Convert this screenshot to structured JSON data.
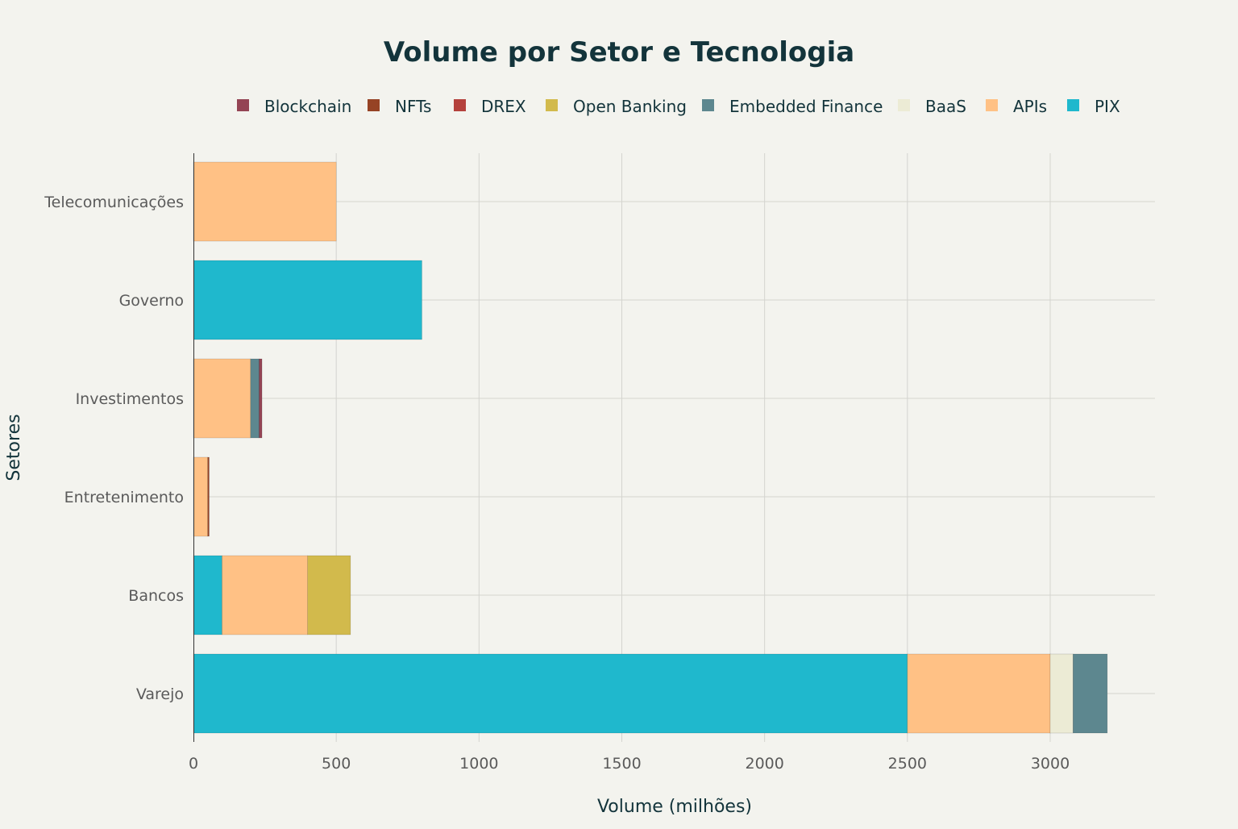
{
  "chart_data": {
    "type": "bar",
    "orientation": "horizontal",
    "stacked": true,
    "title": "Volume por Setor e Tecnologia",
    "xlabel": "Volume (milhões)",
    "ylabel": "Setores",
    "xlim": [
      0,
      3370
    ],
    "xticks": [
      0,
      500,
      1000,
      1500,
      2000,
      2500,
      3000
    ],
    "grid": true,
    "legend_position": "top",
    "categories": [
      "Varejo",
      "Bancos",
      "Entretenimento",
      "Investimentos",
      "Governo",
      "Telecomunicações"
    ],
    "series": [
      {
        "name": "PIX",
        "color": "#1fb8cd",
        "values": [
          2500,
          100,
          0,
          0,
          800,
          0
        ]
      },
      {
        "name": "APIs",
        "color": "#ffc185",
        "values": [
          500,
          300,
          50,
          200,
          0,
          500
        ]
      },
      {
        "name": "BaaS",
        "color": "#eceBd5",
        "values": [
          80,
          0,
          0,
          0,
          0,
          0
        ]
      },
      {
        "name": "Embedded Finance",
        "color": "#5d878f",
        "values": [
          120,
          0,
          0,
          30,
          0,
          0
        ]
      },
      {
        "name": "Open Banking",
        "color": "#d2ba4c",
        "values": [
          0,
          150,
          0,
          0,
          0,
          0
        ]
      },
      {
        "name": "DREX",
        "color": "#b4413c",
        "values": [
          0,
          0,
          0,
          0,
          0,
          0
        ]
      },
      {
        "name": "NFTs",
        "color": "#964325",
        "values": [
          0,
          0,
          5,
          0,
          0,
          0
        ]
      },
      {
        "name": "Blockchain",
        "color": "#944454",
        "values": [
          0,
          0,
          0,
          10,
          0,
          0
        ]
      }
    ],
    "legend_order": [
      "Blockchain",
      "NFTs",
      "DREX",
      "Open Banking",
      "Embedded Finance",
      "BaaS",
      "APIs",
      "PIX"
    ]
  }
}
